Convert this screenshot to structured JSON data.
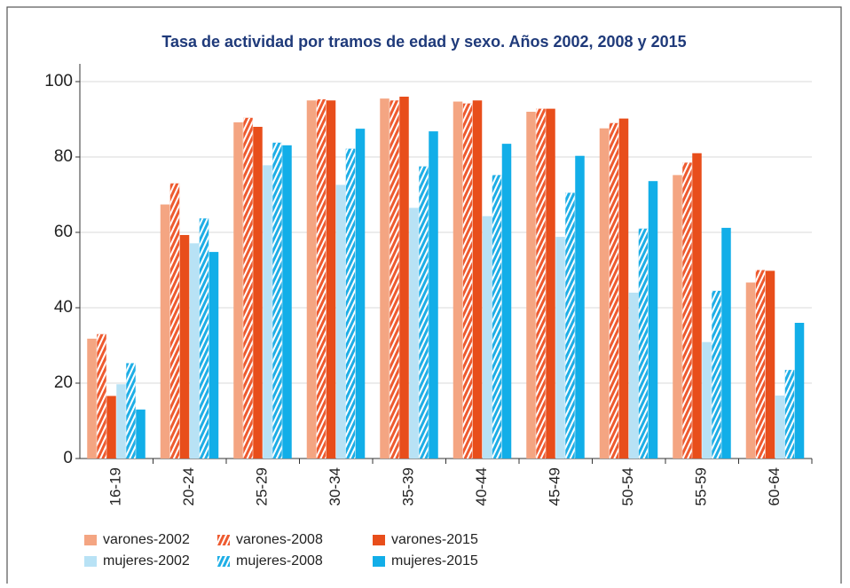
{
  "chart_data": {
    "type": "bar",
    "title": "Tasa de actividad por tramos de edad y sexo. Años 2002, 2008 y 2015",
    "categories": [
      "16-19",
      "20-24",
      "25-29",
      "30-34",
      "35-39",
      "40-44",
      "45-49",
      "50-54",
      "55-59",
      "60-64"
    ],
    "series": [
      {
        "name": "varones-2002",
        "color": "#f4a582",
        "hatched": false,
        "values": [
          31.8,
          67.4,
          89.2,
          95,
          95.5,
          94.7,
          92,
          87.6,
          75.2,
          46.7
        ]
      },
      {
        "name": "varones-2008",
        "color": "#ee5a2f",
        "hatched": true,
        "values": [
          33,
          73,
          90.4,
          95.3,
          95,
          94.2,
          92.8,
          89,
          78.5,
          50
        ]
      },
      {
        "name": "varones-2015",
        "color": "#e84e1b",
        "hatched": false,
        "values": [
          16.6,
          59.3,
          88,
          95,
          96,
          95,
          92.8,
          90.2,
          81,
          49.8
        ]
      },
      {
        "name": "mujeres-2002",
        "color": "#b8e2f5",
        "hatched": false,
        "values": [
          19.7,
          57.1,
          77.8,
          72.6,
          66.5,
          64.3,
          58.8,
          44,
          30.9,
          16.7
        ]
      },
      {
        "name": "mujeres-2008",
        "color": "#1eaee6",
        "hatched": true,
        "values": [
          25.3,
          63.7,
          83.8,
          82.2,
          77.5,
          75.2,
          70.5,
          61,
          44.5,
          23.5
        ]
      },
      {
        "name": "mujeres-2015",
        "color": "#12aee8",
        "hatched": false,
        "values": [
          13,
          54.8,
          83.1,
          87.5,
          86.8,
          83.5,
          80.3,
          73.6,
          61.2,
          36
        ]
      }
    ],
    "ylim": [
      0,
      100
    ],
    "yticks": [
      0,
      20,
      40,
      60,
      80,
      100
    ],
    "grid": true
  }
}
